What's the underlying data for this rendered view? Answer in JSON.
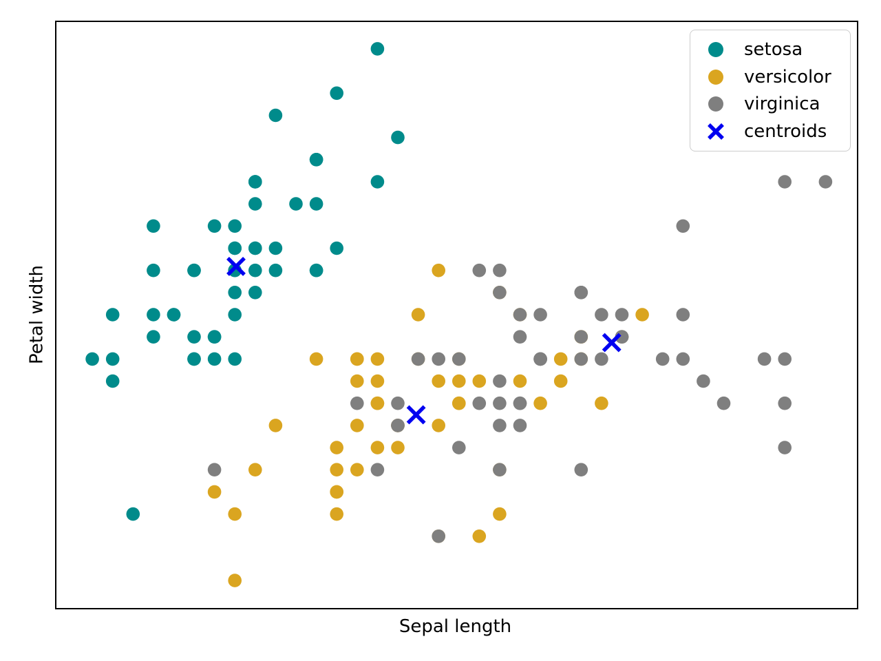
{
  "figure": {
    "background": "#ffffff",
    "frame_color": "#000000"
  },
  "legend": {
    "items": [
      {
        "label": "setosa",
        "marker": "circle",
        "color": "#008B8B"
      },
      {
        "label": "versicolor",
        "marker": "circle",
        "color": "#DAA520"
      },
      {
        "label": "virginica",
        "marker": "circle",
        "color": "#7F7F7F"
      },
      {
        "label": "centroids",
        "marker": "x",
        "color": "#0000F0"
      }
    ]
  },
  "chart_data": {
    "type": "scatter",
    "title": "",
    "xlabel": "Sepal length",
    "ylabel": "Petal width",
    "xlim": [
      4.124,
      8.054
    ],
    "ylim": [
      1.876,
      4.521
    ],
    "grid": false,
    "legend_position": "upper right",
    "dot_radius": 9.8,
    "x_marker_half": 12,
    "x_marker_stroke": 5.5,
    "series": [
      {
        "name": "setosa",
        "marker": "circle",
        "color": "#008B8B",
        "points": [
          [
            5.1,
            3.5
          ],
          [
            4.9,
            3.0
          ],
          [
            4.7,
            3.2
          ],
          [
            4.6,
            3.1
          ],
          [
            5.0,
            3.6
          ],
          [
            5.4,
            3.9
          ],
          [
            4.6,
            3.4
          ],
          [
            5.0,
            3.4
          ],
          [
            4.4,
            2.9
          ],
          [
            4.9,
            3.1
          ],
          [
            5.4,
            3.7
          ],
          [
            4.8,
            3.4
          ],
          [
            4.8,
            3.0
          ],
          [
            4.3,
            3.0
          ],
          [
            5.8,
            4.0
          ],
          [
            5.7,
            4.4
          ],
          [
            5.4,
            3.9
          ],
          [
            5.1,
            3.5
          ],
          [
            5.7,
            3.8
          ],
          [
            5.1,
            3.8
          ],
          [
            5.4,
            3.4
          ],
          [
            5.1,
            3.7
          ],
          [
            4.6,
            3.6
          ],
          [
            5.1,
            3.3
          ],
          [
            4.8,
            3.4
          ],
          [
            5.0,
            3.0
          ],
          [
            5.0,
            3.4
          ],
          [
            5.2,
            3.5
          ],
          [
            5.2,
            3.4
          ],
          [
            4.7,
            3.2
          ],
          [
            4.8,
            3.1
          ],
          [
            5.4,
            3.4
          ],
          [
            5.2,
            4.1
          ],
          [
            5.5,
            4.2
          ],
          [
            4.9,
            3.1
          ],
          [
            5.0,
            3.2
          ],
          [
            5.5,
            3.5
          ],
          [
            4.9,
            3.6
          ],
          [
            4.4,
            3.0
          ],
          [
            5.1,
            3.4
          ],
          [
            5.0,
            3.5
          ],
          [
            4.5,
            2.3
          ],
          [
            4.4,
            3.2
          ],
          [
            5.0,
            3.5
          ],
          [
            5.1,
            3.8
          ],
          [
            4.8,
            3.0
          ],
          [
            5.1,
            3.8
          ],
          [
            4.6,
            3.2
          ],
          [
            5.3,
            3.7
          ],
          [
            5.0,
            3.3
          ]
        ]
      },
      {
        "name": "versicolor",
        "marker": "circle",
        "color": "#DAA520",
        "points": [
          [
            7.0,
            3.2
          ],
          [
            6.4,
            3.2
          ],
          [
            6.9,
            3.1
          ],
          [
            5.5,
            2.3
          ],
          [
            6.5,
            2.8
          ],
          [
            5.7,
            2.8
          ],
          [
            6.3,
            3.3
          ],
          [
            4.9,
            2.4
          ],
          [
            6.6,
            2.9
          ],
          [
            5.2,
            2.7
          ],
          [
            5.0,
            2.0
          ],
          [
            5.9,
            3.0
          ],
          [
            6.0,
            2.2
          ],
          [
            6.1,
            2.9
          ],
          [
            5.6,
            2.9
          ],
          [
            6.7,
            3.1
          ],
          [
            5.6,
            3.0
          ],
          [
            5.8,
            2.7
          ],
          [
            6.2,
            2.2
          ],
          [
            5.6,
            2.5
          ],
          [
            5.9,
            3.2
          ],
          [
            6.1,
            2.8
          ],
          [
            6.3,
            2.5
          ],
          [
            6.1,
            2.8
          ],
          [
            6.4,
            2.9
          ],
          [
            6.6,
            3.0
          ],
          [
            6.8,
            2.8
          ],
          [
            6.7,
            3.0
          ],
          [
            6.0,
            2.9
          ],
          [
            5.7,
            2.6
          ],
          [
            5.5,
            2.4
          ],
          [
            5.5,
            2.4
          ],
          [
            5.8,
            2.7
          ],
          [
            6.0,
            2.7
          ],
          [
            5.4,
            3.0
          ],
          [
            6.0,
            3.4
          ],
          [
            6.7,
            3.1
          ],
          [
            6.3,
            2.3
          ],
          [
            5.6,
            3.0
          ],
          [
            5.5,
            2.5
          ],
          [
            5.5,
            2.6
          ],
          [
            6.1,
            3.0
          ],
          [
            5.8,
            2.6
          ],
          [
            5.0,
            2.3
          ],
          [
            5.6,
            2.7
          ],
          [
            5.7,
            3.0
          ],
          [
            5.7,
            2.9
          ],
          [
            6.2,
            2.9
          ],
          [
            5.1,
            2.5
          ],
          [
            5.7,
            2.8
          ]
        ]
      },
      {
        "name": "virginica",
        "marker": "circle",
        "color": "#7F7F7F",
        "points": [
          [
            6.3,
            3.3
          ],
          [
            5.8,
            2.7
          ],
          [
            7.1,
            3.0
          ],
          [
            6.3,
            2.9
          ],
          [
            6.5,
            3.0
          ],
          [
            7.6,
            3.0
          ],
          [
            4.9,
            2.5
          ],
          [
            7.3,
            2.9
          ],
          [
            6.7,
            2.5
          ],
          [
            7.2,
            3.6
          ],
          [
            6.5,
            3.2
          ],
          [
            6.4,
            2.7
          ],
          [
            6.8,
            3.0
          ],
          [
            5.7,
            2.5
          ],
          [
            5.8,
            2.8
          ],
          [
            6.4,
            3.2
          ],
          [
            6.5,
            3.0
          ],
          [
            7.7,
            3.8
          ],
          [
            7.7,
            2.6
          ],
          [
            6.0,
            2.2
          ],
          [
            6.9,
            3.2
          ],
          [
            5.6,
            2.8
          ],
          [
            7.7,
            2.8
          ],
          [
            6.3,
            2.7
          ],
          [
            6.7,
            3.3
          ],
          [
            7.2,
            3.2
          ],
          [
            6.2,
            2.8
          ],
          [
            6.1,
            3.0
          ],
          [
            6.4,
            2.8
          ],
          [
            7.2,
            3.0
          ],
          [
            7.4,
            2.8
          ],
          [
            7.9,
            3.8
          ],
          [
            6.4,
            2.8
          ],
          [
            6.3,
            2.8
          ],
          [
            6.1,
            2.6
          ],
          [
            7.7,
            3.0
          ],
          [
            6.3,
            3.4
          ],
          [
            6.4,
            3.1
          ],
          [
            6.0,
            3.0
          ],
          [
            6.9,
            3.1
          ],
          [
            6.7,
            3.1
          ],
          [
            6.9,
            3.1
          ],
          [
            5.8,
            2.7
          ],
          [
            6.8,
            3.2
          ],
          [
            6.7,
            3.3
          ],
          [
            6.7,
            3.0
          ],
          [
            6.3,
            2.5
          ],
          [
            6.5,
            3.0
          ],
          [
            6.2,
            3.4
          ],
          [
            5.9,
            3.0
          ]
        ]
      },
      {
        "name": "centroids",
        "marker": "x",
        "color": "#0000F0",
        "points": [
          [
            5.006,
            3.418
          ],
          [
            5.89,
            2.748
          ],
          [
            6.85,
            3.074
          ]
        ]
      }
    ]
  }
}
